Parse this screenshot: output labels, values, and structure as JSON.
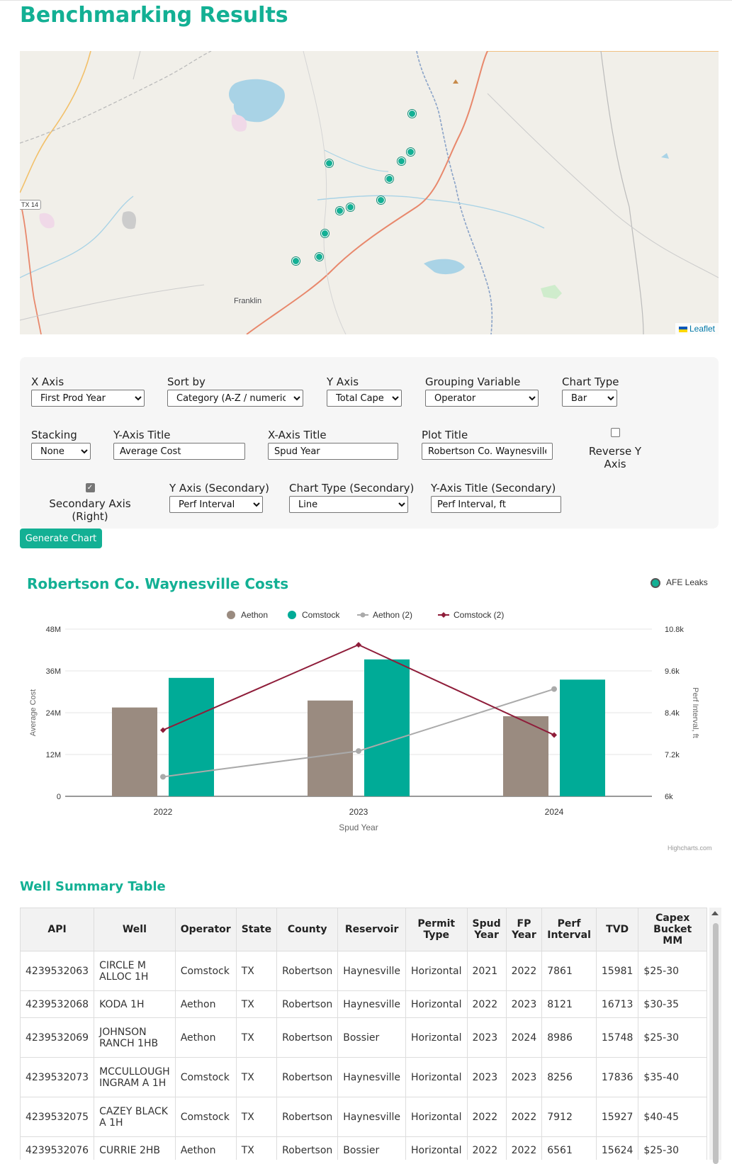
{
  "page": {
    "title": "Benchmarking Results"
  },
  "map": {
    "town_label": "Franklin",
    "highway_label": "TX 14",
    "attribution": "Leaflet",
    "marker_color": "#13b094"
  },
  "controls": {
    "x_axis": {
      "label": "X Axis",
      "value": "First Prod Year"
    },
    "sort_by": {
      "label": "Sort by",
      "value": "Category (A-Z / numeric ↑)"
    },
    "y_axis": {
      "label": "Y Axis",
      "value": "Total Capex"
    },
    "grouping": {
      "label": "Grouping Variable",
      "value": "Operator"
    },
    "chart_type": {
      "label": "Chart Type",
      "value": "Bar"
    },
    "stacking": {
      "label": "Stacking",
      "value": "None"
    },
    "y_axis_title": {
      "label": "Y-Axis Title",
      "value": "Average Cost"
    },
    "x_axis_title": {
      "label": "X-Axis Title",
      "value": "Spud Year"
    },
    "plot_title": {
      "label": "Plot Title",
      "value": "Robertson Co. Waynesville Costs"
    },
    "reverse_y": {
      "label": "Reverse Y Axis",
      "checked": false
    },
    "secondary_axis": {
      "label": "Secondary Axis (Right)",
      "checked": true
    },
    "y_axis_secondary": {
      "label": "Y Axis (Secondary)",
      "value": "Perf Interval"
    },
    "chart_type_secondary": {
      "label": "Chart Type (Secondary)",
      "value": "Line"
    },
    "y_axis_title_secondary": {
      "label": "Y-Axis Title (Secondary)",
      "value": "Perf Interval, ft"
    },
    "generate_button": "Generate Chart"
  },
  "afe_leaks": {
    "label": "AFE Leaks",
    "color": "#13b094"
  },
  "chart_data": {
    "type": "bar",
    "title": "Robertson Co. Waynesville Costs",
    "xlabel": "Spud Year",
    "ylabel": "Average Cost",
    "ylabel_secondary": "Perf Interval, ft",
    "categories": [
      "2022",
      "2023",
      "2024"
    ],
    "ylim": [
      0,
      48000000
    ],
    "ylim_secondary": [
      6000,
      10800
    ],
    "y_ticks": [
      "0",
      "12M",
      "24M",
      "36M",
      "48M"
    ],
    "y_ticks_secondary": [
      "6k",
      "7.2k",
      "8.4k",
      "9.6k",
      "10.8k"
    ],
    "legend_position": "top",
    "grid": true,
    "series": [
      {
        "name": "Aethon",
        "kind": "bar",
        "axis": "primary",
        "color": "#9a8b80",
        "values": [
          25500000,
          27500000,
          23000000
        ]
      },
      {
        "name": "Comstock",
        "kind": "bar",
        "axis": "primary",
        "color": "#00ab97",
        "values": [
          34000000,
          39300000,
          33500000
        ]
      },
      {
        "name": "Aethon (2)",
        "kind": "line",
        "axis": "secondary",
        "color": "#aaaaaa",
        "values": [
          6560,
          7300,
          9080
        ]
      },
      {
        "name": "Comstock (2)",
        "kind": "line",
        "axis": "secondary",
        "color": "#8f1d3a",
        "values": [
          7900,
          10350,
          7760
        ]
      }
    ],
    "credits": "Highcharts.com"
  },
  "table": {
    "title": "Well Summary Table",
    "headers": [
      "API",
      "Well",
      "Operator",
      "State",
      "County",
      "Reservoir",
      "Permit Type",
      "Spud Year",
      "FP Year",
      "Perf Interval",
      "TVD",
      "Capex Bucket MM"
    ],
    "rows": [
      [
        "4239532063",
        "CIRCLE M ALLOC 1H",
        "Comstock",
        "TX",
        "Robertson",
        "Haynesville",
        "Horizontal",
        "2021",
        "2022",
        "7861",
        "15981",
        "$25-30"
      ],
      [
        "4239532068",
        "KODA 1H",
        "Aethon",
        "TX",
        "Robertson",
        "Haynesville",
        "Horizontal",
        "2022",
        "2023",
        "8121",
        "16713",
        "$30-35"
      ],
      [
        "4239532069",
        "JOHNSON RANCH 1HB",
        "Aethon",
        "TX",
        "Robertson",
        "Bossier",
        "Horizontal",
        "2023",
        "2024",
        "8986",
        "15748",
        "$25-30"
      ],
      [
        "4239532073",
        "MCCULLOUGH INGRAM A 1H",
        "Comstock",
        "TX",
        "Robertson",
        "Haynesville",
        "Horizontal",
        "2023",
        "2023",
        "8256",
        "17836",
        "$35-40"
      ],
      [
        "4239532075",
        "CAZEY BLACK A 1H",
        "Comstock",
        "TX",
        "Robertson",
        "Haynesville",
        "Horizontal",
        "2022",
        "2022",
        "7912",
        "15927",
        "$40-45"
      ],
      [
        "4239532076",
        "CURRIE 2HB",
        "Aethon",
        "TX",
        "Robertson",
        "Bossier",
        "Horizontal",
        "2022",
        "2022",
        "6561",
        "15624",
        "$25-30"
      ]
    ]
  }
}
